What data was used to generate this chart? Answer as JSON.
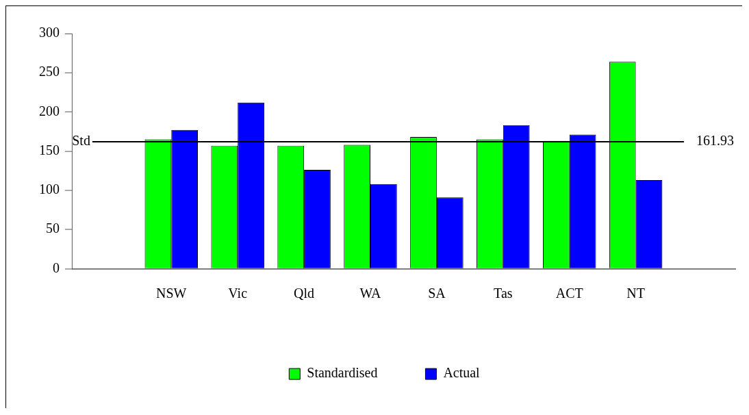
{
  "chart_data": {
    "type": "bar",
    "categories": [
      "NSW",
      "Vic",
      "Qld",
      "WA",
      "SA",
      "Tas",
      "ACT",
      "NT"
    ],
    "series": [
      {
        "name": "Standardised",
        "color": "#00ff00",
        "values": [
          165,
          157,
          157,
          158,
          168,
          165,
          163,
          264
        ]
      },
      {
        "name": "Actual",
        "color": "#0000ff",
        "values": [
          177,
          212,
          126,
          108,
          91,
          183,
          171,
          113
        ]
      }
    ],
    "ylim": [
      0,
      300
    ],
    "yticks": [
      0,
      50,
      100,
      150,
      200,
      250,
      300
    ],
    "ref_lines": [
      {
        "axis": "y",
        "value": 161.93,
        "label": "Std"
      }
    ],
    "annotations": [
      "161.93"
    ],
    "grid": false,
    "legend": "bottom"
  }
}
